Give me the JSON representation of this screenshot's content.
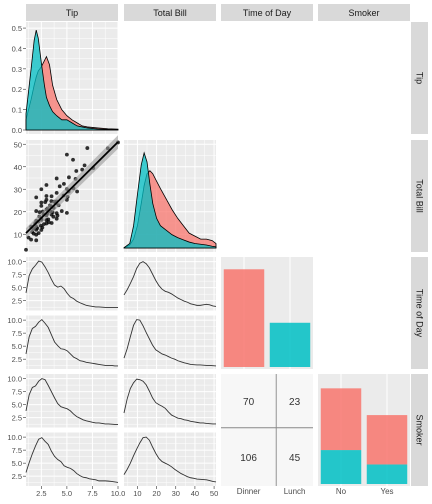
{
  "colors": {
    "strip": "#d9d9d9",
    "panel": "#ebebeb",
    "grid": "#ffffff",
    "fill_a": "#f8766d",
    "fill_b": "#00bfc4",
    "text": "#1a1a1a",
    "axis_text": "#4d4d4d",
    "point": "#000000",
    "ribbon": "#999999"
  },
  "chart_data": {
    "type": "pairs",
    "variables": [
      "Tip",
      "Total Bill",
      "Time of Day",
      "Smoker"
    ],
    "axes": {
      "tip_x": {
        "lim": [
          1,
          10
        ],
        "ticks": [
          2.5,
          5.0,
          7.5,
          10.0
        ],
        "tick_labels": [
          "2.5",
          "5.0",
          "7.5",
          "10.0"
        ]
      },
      "bill_x": {
        "lim": [
          3,
          51
        ],
        "ticks": [
          10,
          20,
          30,
          40,
          50
        ],
        "tick_labels": [
          "10",
          "20",
          "30",
          "40",
          "50"
        ]
      },
      "density_y": {
        "lim": [
          0,
          0.52
        ],
        "ticks": [
          0,
          0.1,
          0.2,
          0.3,
          0.4,
          0.5
        ],
        "tick_labels": [
          "0.0",
          "0.1",
          "0.2",
          "0.3",
          "0.4",
          "0.5"
        ]
      },
      "bill_y": {
        "lim": [
          3,
          51
        ],
        "ticks": [
          10,
          20,
          30,
          40,
          50
        ],
        "tick_labels": [
          "10",
          "20",
          "30",
          "40",
          "50"
        ]
      },
      "factor_y": {
        "lim": [
          1,
          10.5
        ],
        "ticks": [
          2.5,
          5.0,
          7.5,
          10.0
        ],
        "tick_labels": [
          "2.5",
          "5.0",
          "7.5",
          "10.0"
        ]
      },
      "time_x": {
        "categories": [
          "Dinner",
          "Lunch"
        ]
      },
      "smoker_x": {
        "categories": [
          "No",
          "Yes"
        ]
      }
    },
    "tip_density": {
      "x": [
        1.0,
        1.5,
        1.8,
        2.0,
        2.2,
        2.5,
        2.8,
        3.0,
        3.3,
        3.6,
        4.0,
        4.5,
        5.0,
        5.5,
        6.0,
        6.5,
        7.0,
        8.0,
        9.0,
        10.0
      ],
      "series": [
        {
          "values": [
            0.08,
            0.3,
            0.44,
            0.49,
            0.45,
            0.33,
            0.22,
            0.16,
            0.12,
            0.09,
            0.07,
            0.05,
            0.05,
            0.035,
            0.02,
            0.015,
            0.01,
            0.005,
            0.003,
            0.002
          ]
        },
        {
          "values": [
            0.05,
            0.15,
            0.22,
            0.26,
            0.29,
            0.31,
            0.34,
            0.36,
            0.32,
            0.22,
            0.15,
            0.1,
            0.07,
            0.05,
            0.035,
            0.02,
            0.015,
            0.01,
            0.006,
            0.004
          ]
        }
      ]
    },
    "bill_density": {
      "x": [
        3,
        6,
        8,
        10,
        12,
        13.5,
        15,
        16.5,
        18,
        20,
        22,
        25,
        28,
        31,
        34,
        37,
        40,
        43,
        46,
        49,
        51
      ],
      "series": [
        {
          "values": [
            0.002,
            0.03,
            0.15,
            0.36,
            0.56,
            0.64,
            0.58,
            0.43,
            0.3,
            0.2,
            0.15,
            0.12,
            0.09,
            0.07,
            0.055,
            0.04,
            0.03,
            0.025,
            0.02,
            0.012,
            0.008
          ]
        },
        {
          "values": [
            0.001,
            0.02,
            0.06,
            0.15,
            0.3,
            0.42,
            0.5,
            0.52,
            0.5,
            0.45,
            0.4,
            0.33,
            0.26,
            0.2,
            0.15,
            0.1,
            0.08,
            0.06,
            0.06,
            0.05,
            0.03
          ]
        }
      ]
    },
    "scatter": {
      "x": [
        1.0,
        1.25,
        1.5,
        1.5,
        1.6,
        1.7,
        1.75,
        1.9,
        2.0,
        2.0,
        2.0,
        2.0,
        2.0,
        2.0,
        2.0,
        2.1,
        2.2,
        2.24,
        2.3,
        2.34,
        2.45,
        2.5,
        2.5,
        2.5,
        2.5,
        2.5,
        2.52,
        2.6,
        2.64,
        2.72,
        2.75,
        2.88,
        3.0,
        3.0,
        3.0,
        3.0,
        3.0,
        3.0,
        3.0,
        3.08,
        3.12,
        3.18,
        3.23,
        3.35,
        3.41,
        3.48,
        3.5,
        3.5,
        3.5,
        3.51,
        3.6,
        3.68,
        3.71,
        3.76,
        3.92,
        4.0,
        4.0,
        4.0,
        4.0,
        4.0,
        4.08,
        4.19,
        4.3,
        4.5,
        4.67,
        4.71,
        5.0,
        5.0,
        5.0,
        5.0,
        5.07,
        5.17,
        5.2,
        5.6,
        5.65,
        5.85,
        5.92,
        6.0,
        6.5,
        6.73,
        7.0,
        7.58,
        9.0,
        10.0
      ],
      "y": [
        3.1,
        8.5,
        7.6,
        13.4,
        11.0,
        12.5,
        10.3,
        14.8,
        7.3,
        9.8,
        12.0,
        13.4,
        16.0,
        20.3,
        26.4,
        12.7,
        15.6,
        10.5,
        17.9,
        19.8,
        13.8,
        17.0,
        11.9,
        22.6,
        24.1,
        30.0,
        16.4,
        13.0,
        20.1,
        18.7,
        14.5,
        24.3,
        14.8,
        16.3,
        18.4,
        21.0,
        25.3,
        27.0,
        31.9,
        19.3,
        21.5,
        16.6,
        15.3,
        22.8,
        20.1,
        24.7,
        18.7,
        22.2,
        26.9,
        15.0,
        19.8,
        17.8,
        21.7,
        24.5,
        23.7,
        16.9,
        19.4,
        24.6,
        28.4,
        34.8,
        18.3,
        22.9,
        31.3,
        20.3,
        27.2,
        32.4,
        19.5,
        25.3,
        30.1,
        45.4,
        26.6,
        29.0,
        35.3,
        43.1,
        30.4,
        34.6,
        38.1,
        29.0,
        38.7,
        40.6,
        48.3,
        39.4,
        48.2,
        50.8
      ],
      "fit": {
        "x": [
          1.0,
          10.0
        ],
        "y": [
          10.5,
          51.0
        ],
        "se_halfwidth": [
          2.2,
          3.0
        ]
      }
    },
    "factor_density_curves": {
      "curve_1": {
        "values": [
          4.0,
          7.3,
          8.6,
          9.3,
          10.1,
          9.9,
          9.0,
          7.9,
          6.6,
          5.5,
          5.1,
          5.3,
          4.8,
          3.9,
          3.2,
          2.9,
          2.4,
          2.1,
          1.85,
          1.6,
          1.5,
          1.4,
          1.3,
          1.3,
          1.25,
          1.2,
          1.2,
          1.2,
          1.2,
          1.2
        ]
      },
      "curve_2": {
        "values": [
          3.5,
          6.8,
          8.4,
          8.8,
          9.6,
          10.1,
          9.4,
          8.6,
          7.2,
          5.8,
          5.1,
          4.5,
          4.4,
          4.1,
          3.5,
          2.9,
          2.6,
          2.2,
          2.1,
          1.9,
          1.8,
          1.7,
          1.6,
          1.5,
          1.4,
          1.3,
          1.3,
          1.3,
          1.2,
          1.2
        ]
      },
      "curve_3": {
        "values": [
          3.6,
          4.6,
          5.8,
          7.1,
          8.7,
          9.7,
          10.0,
          9.6,
          8.8,
          7.6,
          6.4,
          5.4,
          4.7,
          4.3,
          4.1,
          3.8,
          3.4,
          3.0,
          2.7,
          2.4,
          2.2,
          1.9,
          1.75,
          1.6,
          1.6,
          1.7,
          1.8,
          1.7,
          1.5,
          1.4
        ]
      },
      "curve_4": {
        "values": [
          2.7,
          4.5,
          6.8,
          9.0,
          10.1,
          10.0,
          8.9,
          7.6,
          6.4,
          5.2,
          4.3,
          3.9,
          3.5,
          3.3,
          3.0,
          2.7,
          2.5,
          2.2,
          2.0,
          1.8,
          1.65,
          1.5,
          1.45,
          1.4,
          1.4,
          1.35,
          1.3,
          1.3,
          1.25,
          1.2
        ]
      },
      "curve_5": {
        "values": [
          3.8,
          6.9,
          8.3,
          8.6,
          9.5,
          10.0,
          9.8,
          8.7,
          7.5,
          6.3,
          5.2,
          4.6,
          4.4,
          4.2,
          3.8,
          3.2,
          2.7,
          2.4,
          2.1,
          1.9,
          1.75,
          1.6,
          1.5,
          1.5,
          1.4,
          1.3,
          1.3,
          1.25,
          1.2,
          1.2
        ]
      },
      "curve_6": {
        "values": [
          3.2,
          5.1,
          6.8,
          8.3,
          9.6,
          9.9,
          9.2,
          8.6,
          7.3,
          6.3,
          5.7,
          5.3,
          4.5,
          4.2,
          4.0,
          3.6,
          3.0,
          2.6,
          2.3,
          2.2,
          2.0,
          1.9,
          1.8,
          1.6,
          1.6,
          1.6,
          1.55,
          1.5,
          1.4,
          1.3
        ]
      },
      "curve_7": {
        "values": [
          3.4,
          6.1,
          8.1,
          9.2,
          9.9,
          9.8,
          9.5,
          8.8,
          7.6,
          6.3,
          5.4,
          5.0,
          4.7,
          4.3,
          3.6,
          3.0,
          2.7,
          2.4,
          2.3,
          2.1,
          2.0,
          1.8,
          1.7,
          1.6,
          1.5,
          1.5,
          1.4,
          1.35,
          1.3,
          1.3
        ]
      },
      "curve_8": {
        "values": [
          2.8,
          3.8,
          5.0,
          6.4,
          7.7,
          8.9,
          9.9,
          10.0,
          9.4,
          8.1,
          6.9,
          5.9,
          5.3,
          5.0,
          4.7,
          4.3,
          3.8,
          3.4,
          3.0,
          2.7,
          2.4,
          2.2,
          2.1,
          1.95,
          1.9,
          1.85,
          1.8,
          1.65,
          1.5,
          1.4
        ]
      }
    },
    "time_bar": {
      "categories": [
        "Dinner",
        "Lunch"
      ],
      "values": [
        9.5,
        4.3
      ],
      "color_keys": [
        "fill_a",
        "fill_b"
      ],
      "ylim": [
        0,
        10.5
      ]
    },
    "mosaic": {
      "cells": [
        {
          "label": "70",
          "value": 70
        },
        {
          "label": "23",
          "value": 23
        },
        {
          "label": "106",
          "value": 106
        },
        {
          "label": "45",
          "value": 45
        }
      ],
      "x_labels": [
        "Dinner",
        "Lunch"
      ]
    },
    "smoker_bar": {
      "categories": [
        "No",
        "Yes"
      ],
      "stacks": [
        {
          "color_key": "fill_b",
          "values": [
            3.3,
            1.9
          ]
        },
        {
          "color_key": "fill_a",
          "values": [
            6.0,
            4.8
          ]
        }
      ],
      "ylim": [
        0,
        10.5
      ]
    }
  }
}
